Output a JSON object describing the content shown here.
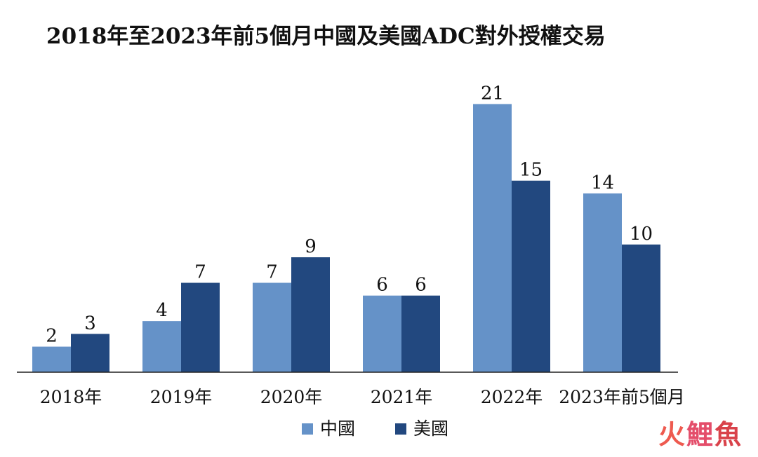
{
  "chart_data": {
    "type": "bar",
    "title": "2018年至2023年前5個月中國及美國ADC對外授權交易",
    "categories": [
      "2018年",
      "2019年",
      "2020年",
      "2021年",
      "2022年",
      "2023年前5個月"
    ],
    "series": [
      {
        "name": "中國",
        "values": [
          2,
          4,
          7,
          6,
          21,
          14
        ],
        "color": "#6592c8"
      },
      {
        "name": "美國",
        "values": [
          3,
          7,
          9,
          6,
          15,
          10
        ],
        "color": "#22487f"
      }
    ],
    "ylim": [
      0,
      23
    ],
    "grid": false,
    "legend_position": "bottom-center",
    "data_labels": true
  },
  "watermark": [
    "火",
    "鯉",
    "魚"
  ]
}
